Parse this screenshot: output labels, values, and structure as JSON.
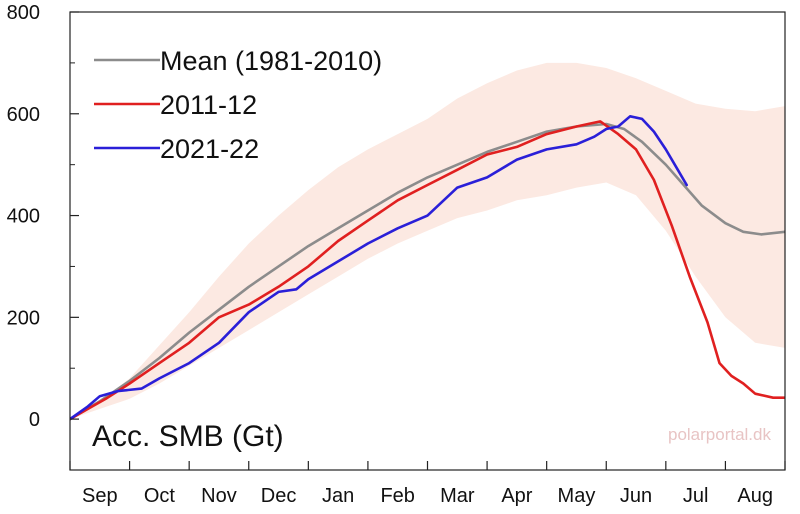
{
  "chart_data": {
    "type": "line",
    "title": "Acc. SMB (Gt)",
    "watermark": "polarportal.dk",
    "xlabel": "",
    "ylabel": "",
    "x_ticks": [
      "Sep",
      "Oct",
      "Nov",
      "Dec",
      "Jan",
      "Feb",
      "Mar",
      "Apr",
      "May",
      "Jun",
      "Jul",
      "Aug"
    ],
    "y_ticks": [
      0,
      200,
      400,
      600,
      800
    ],
    "xlim": [
      0,
      12
    ],
    "ylim": [
      -100,
      800
    ],
    "grid": false,
    "legend_position": "top-left",
    "band": {
      "color": "#fce9e2",
      "x": [
        0,
        0.5,
        1,
        1.5,
        2,
        2.5,
        3,
        3.5,
        4,
        4.5,
        5,
        5.5,
        6,
        6.5,
        7,
        7.5,
        8,
        8.5,
        9,
        9.5,
        10,
        10.5,
        11,
        11.5,
        12
      ],
      "upper": [
        0,
        35,
        80,
        145,
        210,
        280,
        345,
        400,
        450,
        495,
        530,
        560,
        590,
        630,
        660,
        685,
        700,
        700,
        690,
        670,
        645,
        620,
        610,
        605,
        615
      ],
      "lower": [
        0,
        20,
        40,
        70,
        105,
        140,
        175,
        210,
        245,
        280,
        315,
        345,
        370,
        395,
        410,
        430,
        440,
        455,
        465,
        440,
        370,
        280,
        200,
        150,
        140
      ]
    },
    "series": [
      {
        "name": "Mean (1981-2010)",
        "color": "#8c8c8c",
        "x": [
          0,
          0.5,
          1,
          1.5,
          2,
          2.5,
          3,
          3.5,
          4,
          4.5,
          5,
          5.5,
          6,
          6.5,
          7,
          7.5,
          8,
          8.5,
          9,
          9.3,
          9.6,
          10,
          10.3,
          10.6,
          11,
          11.3,
          11.6,
          12
        ],
        "y": [
          0,
          35,
          75,
          120,
          170,
          215,
          260,
          300,
          340,
          375,
          410,
          445,
          475,
          500,
          525,
          545,
          565,
          575,
          580,
          570,
          545,
          500,
          460,
          420,
          385,
          368,
          363,
          368
        ]
      },
      {
        "name": "2011-12",
        "color": "#e02020",
        "x": [
          0,
          0.3,
          0.6,
          1,
          1.5,
          2,
          2.5,
          3,
          3.5,
          4,
          4.5,
          5,
          5.5,
          6,
          6.5,
          7,
          7.5,
          8,
          8.5,
          8.9,
          9.2,
          9.5,
          9.8,
          10.1,
          10.4,
          10.7,
          10.9,
          11.1,
          11.3,
          11.5,
          11.8,
          12
        ],
        "y": [
          0,
          20,
          40,
          70,
          110,
          150,
          200,
          225,
          260,
          300,
          350,
          390,
          430,
          460,
          490,
          520,
          535,
          560,
          575,
          585,
          560,
          530,
          470,
          380,
          280,
          190,
          110,
          85,
          70,
          50,
          42,
          42
        ]
      },
      {
        "name": "2021-22",
        "color": "#2a1fd8",
        "x": [
          0,
          0.3,
          0.5,
          0.8,
          1.2,
          1.5,
          2,
          2.5,
          3,
          3.5,
          3.8,
          4,
          4.5,
          5,
          5.5,
          6,
          6.5,
          7,
          7.5,
          8,
          8.5,
          8.8,
          9,
          9.2,
          9.4,
          9.6,
          9.8,
          10,
          10.2,
          10.35
        ],
        "y": [
          0,
          25,
          45,
          55,
          60,
          80,
          110,
          150,
          210,
          250,
          255,
          275,
          310,
          345,
          375,
          400,
          455,
          475,
          510,
          530,
          540,
          555,
          570,
          575,
          595,
          590,
          565,
          530,
          490,
          460
        ]
      }
    ]
  }
}
